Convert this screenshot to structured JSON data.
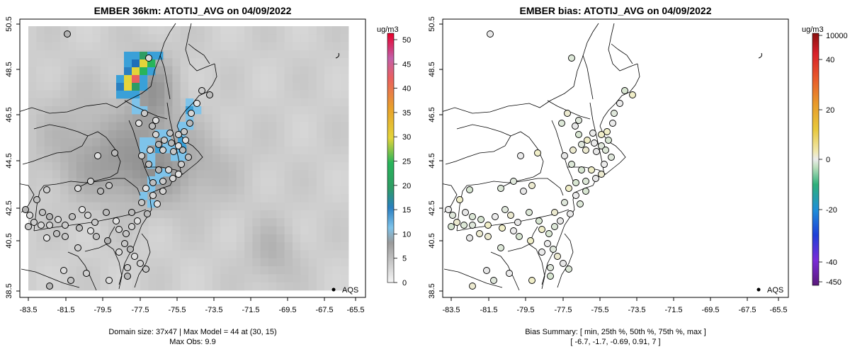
{
  "panels": [
    {
      "title": "EMBER 36km: ATOTIJ_AVG on 04/09/2022",
      "caption_line1": "Domain size: 37x47 | Max Model = 44 at (30, 15)",
      "caption_line2": "Max Obs: 9.9",
      "legend_label": "AQS",
      "colorbar_unit": "ug/m3",
      "colorbar_ticks": [
        "0",
        "5",
        "10",
        "15",
        "20",
        "25",
        "30",
        "35",
        "40",
        "45",
        "50"
      ]
    },
    {
      "title": "EMBER bias: ATOTIJ_AVG on 04/09/2022",
      "caption_line1": "Bias Summary: [ min, 25th %, 50th %, 75th %, max ]",
      "caption_line2": "[ -6.7,  -1.7,  -0.69,  0.91,  7 ]",
      "legend_label": "AQS",
      "colorbar_unit": "ug/m3",
      "colorbar_ticks": [
        "10000",
        "40",
        "20",
        "0",
        "-20",
        "-40",
        "-450"
      ]
    }
  ],
  "axes": {
    "x_ticks": [
      "-83.5",
      "-81.5",
      "-79.5",
      "-77.5",
      "-75.5",
      "-73.5",
      "-71.5",
      "-69.5",
      "-67.5",
      "-65.5"
    ],
    "y_ticks": [
      "38.5",
      "40.5",
      "42.5",
      "44.5",
      "46.5",
      "48.5",
      "50.5"
    ]
  },
  "colors": {
    "accent_high": "#e8002a",
    "accent_mid": "#3aa0d8",
    "land_gray": "#c8c8c8"
  }
}
